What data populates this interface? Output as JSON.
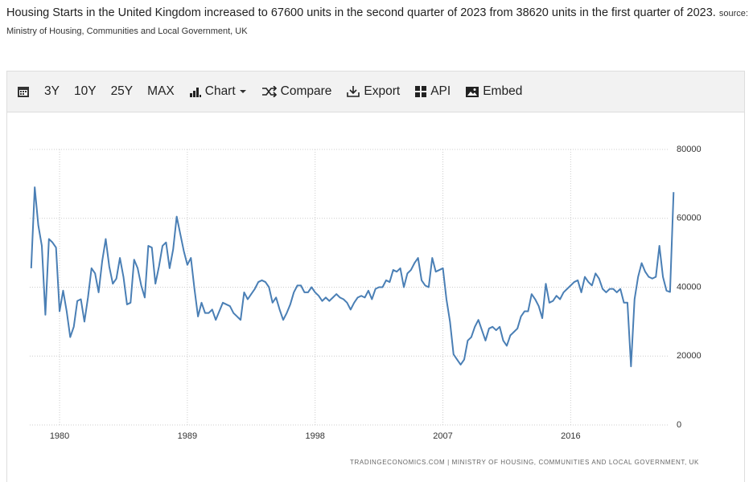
{
  "header": {
    "text": "Housing Starts in the United Kingdom increased to 67600 units in the second quarter of 2023 from 38620 units in the first quarter of 2023.",
    "source": "source: Ministry of Housing, Communities and Local Government, UK"
  },
  "toolbar": [
    "3Y",
    "10Y",
    "25Y",
    "MAX",
    "Chart",
    "Compare",
    "Export",
    "API",
    "Embed"
  ],
  "chart_data": {
    "type": "line",
    "color": "#4a7fb5",
    "grid": true,
    "footer": "TRADINGECONOMICS.COM | MINISTRY OF HOUSING, COMMUNITIES AND LOCAL GOVERNMENT, UK",
    "xlim": [
      1977.9,
      2023.8
    ],
    "xticks": [
      1980,
      1989,
      1998,
      2007,
      2016
    ],
    "ylim": [
      0,
      80000
    ],
    "yticks": [
      0,
      20000,
      40000,
      60000,
      80000
    ],
    "x": [
      1978,
      1978.25,
      1978.5,
      1978.75,
      1979,
      1979.25,
      1979.5,
      1979.75,
      1980,
      1980.25,
      1980.5,
      1980.75,
      1981,
      1981.25,
      1981.5,
      1981.75,
      1982,
      1982.25,
      1982.5,
      1982.75,
      1983,
      1983.25,
      1983.5,
      1983.75,
      1984,
      1984.25,
      1984.5,
      1984.75,
      1985,
      1985.25,
      1985.5,
      1985.75,
      1986,
      1986.25,
      1986.5,
      1986.75,
      1987,
      1987.25,
      1987.5,
      1987.75,
      1988,
      1988.25,
      1988.5,
      1988.75,
      1989,
      1989.25,
      1989.5,
      1989.75,
      1990,
      1990.25,
      1990.5,
      1990.75,
      1991,
      1991.25,
      1991.5,
      1991.75,
      1992,
      1992.25,
      1992.5,
      1992.75,
      1993,
      1993.25,
      1993.5,
      1993.75,
      1994,
      1994.25,
      1994.5,
      1994.75,
      1995,
      1995.25,
      1995.5,
      1995.75,
      1996,
      1996.25,
      1996.5,
      1996.75,
      1997,
      1997.25,
      1997.5,
      1997.75,
      1998,
      1998.25,
      1998.5,
      1998.75,
      1999,
      1999.25,
      1999.5,
      1999.75,
      2000,
      2000.25,
      2000.5,
      2000.75,
      2001,
      2001.25,
      2001.5,
      2001.75,
      2002,
      2002.25,
      2002.5,
      2002.75,
      2003,
      2003.25,
      2003.5,
      2003.75,
      2004,
      2004.25,
      2004.5,
      2004.75,
      2005,
      2005.25,
      2005.5,
      2005.75,
      2006,
      2006.25,
      2006.5,
      2006.75,
      2007,
      2007.25,
      2007.5,
      2007.75,
      2008,
      2008.25,
      2008.5,
      2008.75,
      2009,
      2009.25,
      2009.5,
      2009.75,
      2010,
      2010.25,
      2010.5,
      2010.75,
      2011,
      2011.25,
      2011.5,
      2011.75,
      2012,
      2012.25,
      2012.5,
      2012.75,
      2013,
      2013.25,
      2013.5,
      2013.75,
      2014,
      2014.25,
      2014.5,
      2014.75,
      2015,
      2015.25,
      2015.5,
      2015.75,
      2016,
      2016.25,
      2016.5,
      2016.75,
      2017,
      2017.25,
      2017.5,
      2017.75,
      2018,
      2018.25,
      2018.5,
      2018.75,
      2019,
      2019.25,
      2019.5,
      2019.75,
      2020,
      2020.25,
      2020.5,
      2020.75,
      2021,
      2021.25,
      2021.5,
      2021.75,
      2022,
      2022.25,
      2022.5,
      2022.75,
      2023,
      2023.25
    ],
    "values": [
      45500,
      69000,
      58000,
      52000,
      32000,
      54000,
      53000,
      51500,
      33000,
      39000,
      33000,
      25500,
      28500,
      36000,
      36500,
      30000,
      37000,
      45500,
      44000,
      38500,
      47500,
      54000,
      46000,
      41000,
      42500,
      48500,
      43000,
      35000,
      35500,
      48000,
      45500,
      40500,
      37000,
      52000,
      51500,
      41000,
      46000,
      52000,
      53000,
      45500,
      51000,
      60500,
      55500,
      50500,
      46500,
      48500,
      39500,
      31500,
      35500,
      32500,
      32500,
      33500,
      30500,
      33000,
      35500,
      35000,
      34500,
      32500,
      31500,
      30500,
      38500,
      36500,
      38000,
      39500,
      41500,
      42000,
      41500,
      40000,
      35500,
      37000,
      33500,
      30500,
      32500,
      35000,
      38500,
      40500,
      40500,
      38500,
      38500,
      40000,
      38500,
      37500,
      36000,
      37000,
      36000,
      37000,
      38000,
      37000,
      36500,
      35500,
      33500,
      35500,
      37000,
      37500,
      37000,
      39000,
      36500,
      39500,
      40000,
      40000,
      42000,
      41500,
      45000,
      44500,
      45500,
      40000,
      44000,
      45000,
      47000,
      48500,
      42000,
      40500,
      40000,
      48500,
      44500,
      45000,
      45500,
      36500,
      30000,
      20500,
      19000,
      17500,
      19000,
      24500,
      25500,
      28500,
      30500,
      27500,
      24500,
      28000,
      28500,
      27500,
      28500,
      24500,
      23000,
      26000,
      27000,
      28000,
      31500,
      33000,
      33000,
      38000,
      36500,
      34500,
      31000,
      41000,
      35500,
      36000,
      37500,
      36500,
      38500,
      39500,
      40500,
      41500,
      42000,
      38500,
      43000,
      41500,
      40500,
      44000,
      42500,
      39500,
      38500,
      39500,
      39500,
      38500,
      39500,
      35500,
      35500,
      17000,
      36500,
      43000,
      47000,
      44500,
      43000,
      42500,
      43000,
      52000,
      43000,
      39000,
      38620,
      67600
    ]
  }
}
